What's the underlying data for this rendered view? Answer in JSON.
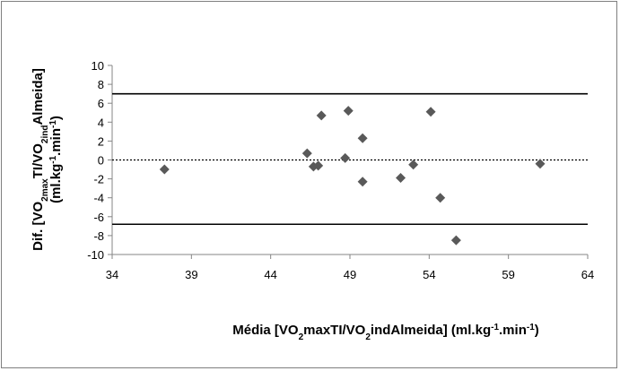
{
  "chart_data": {
    "type": "scatter",
    "xlabel": {
      "parts": [
        {
          "text": "Média [VO",
          "style": "normal"
        },
        {
          "text": "2",
          "style": "sub"
        },
        {
          "text": "maxTI/VO",
          "style": "normal"
        },
        {
          "text": "2",
          "style": "sub"
        },
        {
          "text": "indAlmeida] (ml.kg",
          "style": "normal"
        },
        {
          "text": "-1",
          "style": "sup"
        },
        {
          "text": ".min",
          "style": "normal"
        },
        {
          "text": "-1",
          "style": "sup"
        },
        {
          "text": ")",
          "style": "normal"
        }
      ]
    },
    "ylabel": {
      "line1": [
        {
          "text": "Dif. [VO",
          "style": "normal"
        },
        {
          "text": "2max",
          "style": "sub"
        },
        {
          "text": "TI/VO",
          "style": "normal"
        },
        {
          "text": "2ind",
          "style": "sub"
        },
        {
          "text": "Almeida]",
          "style": "normal"
        }
      ],
      "line2": [
        {
          "text": "(ml.kg",
          "style": "normal"
        },
        {
          "text": "-1",
          "style": "sup"
        },
        {
          "text": ".min",
          "style": "normal"
        },
        {
          "text": "-1",
          "style": "sup"
        },
        {
          "text": ")",
          "style": "normal"
        }
      ]
    },
    "xlim": [
      34,
      64
    ],
    "ylim": [
      -10,
      10
    ],
    "xticks": [
      34,
      39,
      44,
      49,
      54,
      59,
      64
    ],
    "yticks": [
      -10,
      -8,
      -6,
      -4,
      -2,
      0,
      2,
      4,
      6,
      8,
      10
    ],
    "grid": false,
    "marker": "diamond",
    "marker_color": "#595959",
    "points": [
      {
        "x": 37.3,
        "y": -1.0
      },
      {
        "x": 46.3,
        "y": 0.7
      },
      {
        "x": 46.7,
        "y": -0.7
      },
      {
        "x": 47.0,
        "y": -0.6
      },
      {
        "x": 47.2,
        "y": 4.7
      },
      {
        "x": 48.7,
        "y": 0.2
      },
      {
        "x": 48.9,
        "y": 5.2
      },
      {
        "x": 49.8,
        "y": 2.3
      },
      {
        "x": 49.8,
        "y": -2.3
      },
      {
        "x": 52.2,
        "y": -1.9
      },
      {
        "x": 53.0,
        "y": -0.5
      },
      {
        "x": 54.1,
        "y": 5.1
      },
      {
        "x": 54.7,
        "y": -4.0
      },
      {
        "x": 55.7,
        "y": -8.5
      },
      {
        "x": 61.0,
        "y": -0.4
      }
    ],
    "reference_lines": [
      {
        "y": 7.0,
        "style": "solid"
      },
      {
        "y": 0.0,
        "style": "dotted"
      },
      {
        "y": -6.8,
        "style": "solid"
      }
    ]
  }
}
